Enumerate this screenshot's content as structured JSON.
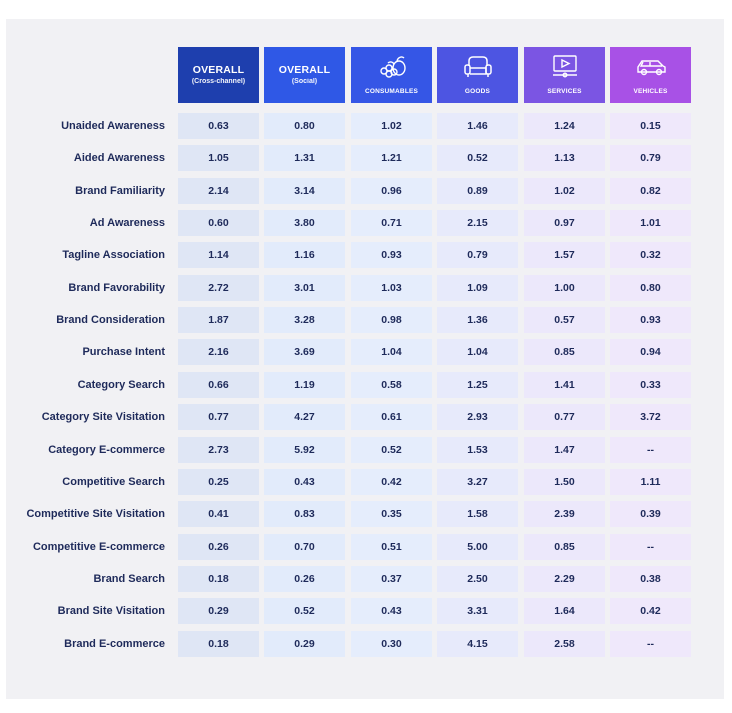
{
  "chart_data": {
    "type": "table",
    "columns": [
      {
        "title": "OVERALL",
        "subtitle": "(Cross-channel)",
        "icon": "",
        "header_color": "#1e3fae",
        "cell_color": "#dfe6f5"
      },
      {
        "title": "OVERALL",
        "subtitle": "(Social)",
        "icon": "",
        "header_color": "#2f58e6",
        "cell_color": "#e2ebfb"
      },
      {
        "title": "CONSUMABLES",
        "subtitle": "",
        "icon": "fruit-icon",
        "header_color": "#3556e6",
        "cell_color": "#e5edfc"
      },
      {
        "title": "GOODS",
        "subtitle": "",
        "icon": "sofa-icon",
        "header_color": "#4d55e2",
        "cell_color": "#e7eafb"
      },
      {
        "title": "SERVICES",
        "subtitle": "",
        "icon": "screen-icon",
        "header_color": "#7b55e3",
        "cell_color": "#ece8fb"
      },
      {
        "title": "VEHICLES",
        "subtitle": "",
        "icon": "car-icon",
        "header_color": "#a851e6",
        "cell_color": "#efe8fb"
      }
    ],
    "rows": [
      {
        "label": "Unaided Awareness",
        "values": [
          "0.63",
          "0.80",
          "1.02",
          "1.46",
          "1.24",
          "0.15"
        ]
      },
      {
        "label": "Aided Awareness",
        "values": [
          "1.05",
          "1.31",
          "1.21",
          "0.52",
          "1.13",
          "0.79"
        ]
      },
      {
        "label": "Brand Familiarity",
        "values": [
          "2.14",
          "3.14",
          "0.96",
          "0.89",
          "1.02",
          "0.82"
        ]
      },
      {
        "label": "Ad Awareness",
        "values": [
          "0.60",
          "3.80",
          "0.71",
          "2.15",
          "0.97",
          "1.01"
        ]
      },
      {
        "label": "Tagline Association",
        "values": [
          "1.14",
          "1.16",
          "0.93",
          "0.79",
          "1.57",
          "0.32"
        ]
      },
      {
        "label": "Brand Favorability",
        "values": [
          "2.72",
          "3.01",
          "1.03",
          "1.09",
          "1.00",
          "0.80"
        ]
      },
      {
        "label": "Brand Consideration",
        "values": [
          "1.87",
          "3.28",
          "0.98",
          "1.36",
          "0.57",
          "0.93"
        ]
      },
      {
        "label": "Purchase Intent",
        "values": [
          "2.16",
          "3.69",
          "1.04",
          "1.04",
          "0.85",
          "0.94"
        ]
      },
      {
        "label": "Category Search",
        "values": [
          "0.66",
          "1.19",
          "0.58",
          "1.25",
          "1.41",
          "0.33"
        ]
      },
      {
        "label": "Category Site Visitation",
        "values": [
          "0.77",
          "4.27",
          "0.61",
          "2.93",
          "0.77",
          "3.72"
        ]
      },
      {
        "label": "Category E-commerce",
        "values": [
          "2.73",
          "5.92",
          "0.52",
          "1.53",
          "1.47",
          "--"
        ]
      },
      {
        "label": "Competitive Search",
        "values": [
          "0.25",
          "0.43",
          "0.42",
          "3.27",
          "1.50",
          "1.11"
        ]
      },
      {
        "label": "Competitive Site Visitation",
        "values": [
          "0.41",
          "0.83",
          "0.35",
          "1.58",
          "2.39",
          "0.39"
        ]
      },
      {
        "label": "Competitive E-commerce",
        "values": [
          "0.26",
          "0.70",
          "0.51",
          "5.00",
          "0.85",
          "--"
        ]
      },
      {
        "label": "Brand Search",
        "values": [
          "0.18",
          "0.26",
          "0.37",
          "2.50",
          "2.29",
          "0.38"
        ]
      },
      {
        "label": "Brand Site Visitation",
        "values": [
          "0.29",
          "0.52",
          "0.43",
          "3.31",
          "1.64",
          "0.42"
        ]
      },
      {
        "label": "Brand E-commerce",
        "values": [
          "0.18",
          "0.29",
          "0.30",
          "4.15",
          "2.58",
          "--"
        ]
      }
    ]
  }
}
